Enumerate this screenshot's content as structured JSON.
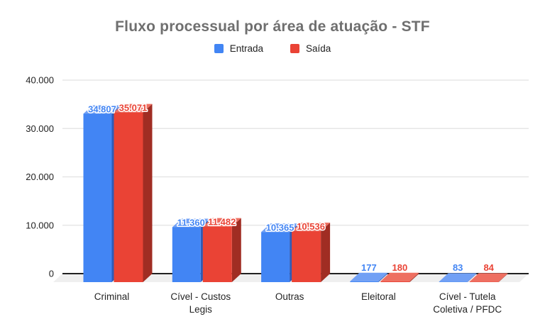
{
  "title": "Fluxo processual por área de atuação - STF",
  "legend": {
    "position": "top",
    "items": [
      {
        "label": "Entrada",
        "color": "#4285F4"
      },
      {
        "label": "Saída",
        "color": "#EA4335"
      }
    ]
  },
  "chart_data": {
    "type": "bar",
    "subtype": "3d-column",
    "title": "Fluxo processual por área de atuação - STF",
    "xlabel": "",
    "ylabel": "",
    "grid": true,
    "legend_position": "top",
    "categories": [
      "Criminal",
      "Cível - Custos Legis",
      "Outras",
      "Eleitoral",
      "Cível - Tutela Coletiva / PFDC"
    ],
    "category_label_lines": [
      [
        "Criminal"
      ],
      [
        "Cível - Custos",
        "Legis"
      ],
      [
        "Outras"
      ],
      [
        "Eleitoral"
      ],
      [
        "Cível - Tutela",
        "Coletiva / PFDC"
      ]
    ],
    "series": [
      {
        "name": "Entrada",
        "color": "#4285F4",
        "color_top": "#71A0F5",
        "color_side": "#2F5BB7",
        "values": [
          34807,
          11360,
          10365,
          177,
          83
        ],
        "labels": [
          "34.807",
          "11.360",
          "10.365",
          "177",
          "83"
        ]
      },
      {
        "name": "Saída",
        "color": "#EA4335",
        "color_top": "#EE6F61",
        "color_side": "#A02D23",
        "values": [
          35071,
          11482,
          10536,
          180,
          84
        ],
        "labels": [
          "35.071",
          "11.482",
          "10.536",
          "180",
          "84"
        ]
      }
    ],
    "y_axis": {
      "min": 0,
      "max": 40000,
      "ticks": [
        {
          "value": 0,
          "label": "0"
        },
        {
          "value": 10000,
          "label": "10.000"
        },
        {
          "value": 20000,
          "label": "20.000"
        },
        {
          "value": 30000,
          "label": "30.000"
        },
        {
          "value": 40000,
          "label": "40.000"
        }
      ]
    },
    "style": {
      "grid_color": "#e2e2e2",
      "axis_color": "#212121",
      "floor_color": "#efefef",
      "tick_text_color": "#212121",
      "category_text_color": "#242424",
      "value_label_outline": "#ffffff"
    }
  }
}
